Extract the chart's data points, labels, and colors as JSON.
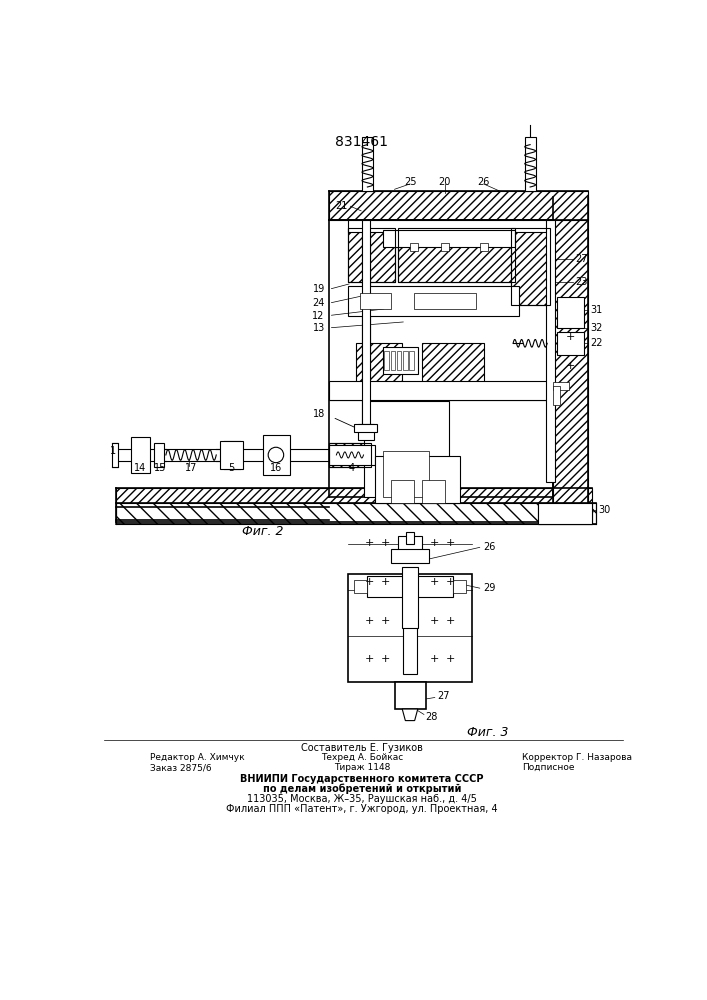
{
  "patent_number": "831461",
  "background_color": "#ffffff",
  "line_color": "#000000",
  "fig2_caption": "Фиг. 2",
  "fig3_caption": "Фиг. 3",
  "footer_line1": "Составитель Е. Гузиков",
  "footer_line2_left": "Редактор А. Химчук",
  "footer_line2_mid": "Техред А. Бойкас",
  "footer_line2_right": "Корректор Г. Назарова",
  "footer_line3_left": "Заказ 2875/6",
  "footer_line3_mid": "Тираж 1148",
  "footer_line3_right": "Подписное",
  "footer_vniipи": "ВНИИПИ Государственного комитета СССР",
  "footer_vniipи2": "по делам изобретений и открытий",
  "footer_address1": "113035, Москва, Ж–35, Раушская наб., д. 4/5",
  "footer_address2": "Филиал ППП «Патент», г. Ужгород, ул. Проектная, 4"
}
